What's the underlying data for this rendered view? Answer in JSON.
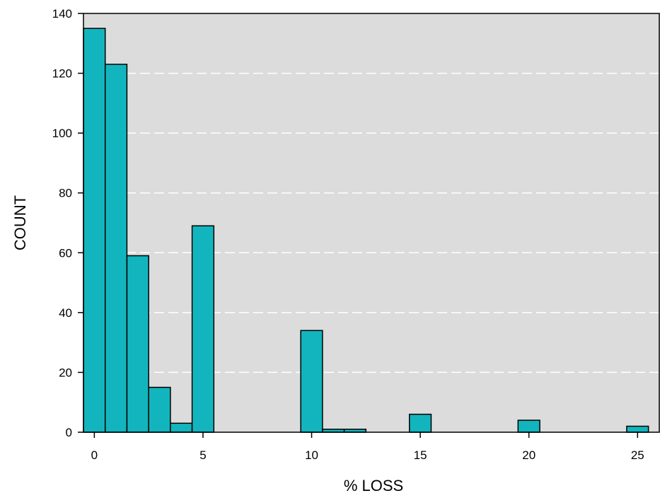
{
  "chart_data": {
    "type": "bar",
    "title": "",
    "xlabel": "% LOSS",
    "ylabel": "COUNT",
    "xlim": [
      -0.5,
      26.0
    ],
    "ylim": [
      0,
      140
    ],
    "x_ticks": [
      0,
      5,
      10,
      15,
      20,
      25
    ],
    "y_ticks": [
      0,
      20,
      40,
      60,
      80,
      100,
      120,
      140
    ],
    "grid": "horizontal dashed",
    "bins": [
      {
        "start": -0.5,
        "end": 0.5,
        "value": 135
      },
      {
        "start": 0.5,
        "end": 1.5,
        "value": 123
      },
      {
        "start": 1.5,
        "end": 2.5,
        "value": 59
      },
      {
        "start": 2.5,
        "end": 3.5,
        "value": 15
      },
      {
        "start": 3.5,
        "end": 4.5,
        "value": 3
      },
      {
        "start": 4.5,
        "end": 5.5,
        "value": 69
      },
      {
        "start": 9.5,
        "end": 10.5,
        "value": 34
      },
      {
        "start": 10.5,
        "end": 11.5,
        "value": 1
      },
      {
        "start": 11.5,
        "end": 12.5,
        "value": 1
      },
      {
        "start": 14.5,
        "end": 15.5,
        "value": 6
      },
      {
        "start": 19.5,
        "end": 20.5,
        "value": 4
      },
      {
        "start": 24.5,
        "end": 25.5,
        "value": 2
      }
    ],
    "colors": {
      "bar_fill": "#12b5bd",
      "bar_stroke": "#000000",
      "plot_background": "#dcdcdc",
      "grid": "#ffffff"
    }
  }
}
